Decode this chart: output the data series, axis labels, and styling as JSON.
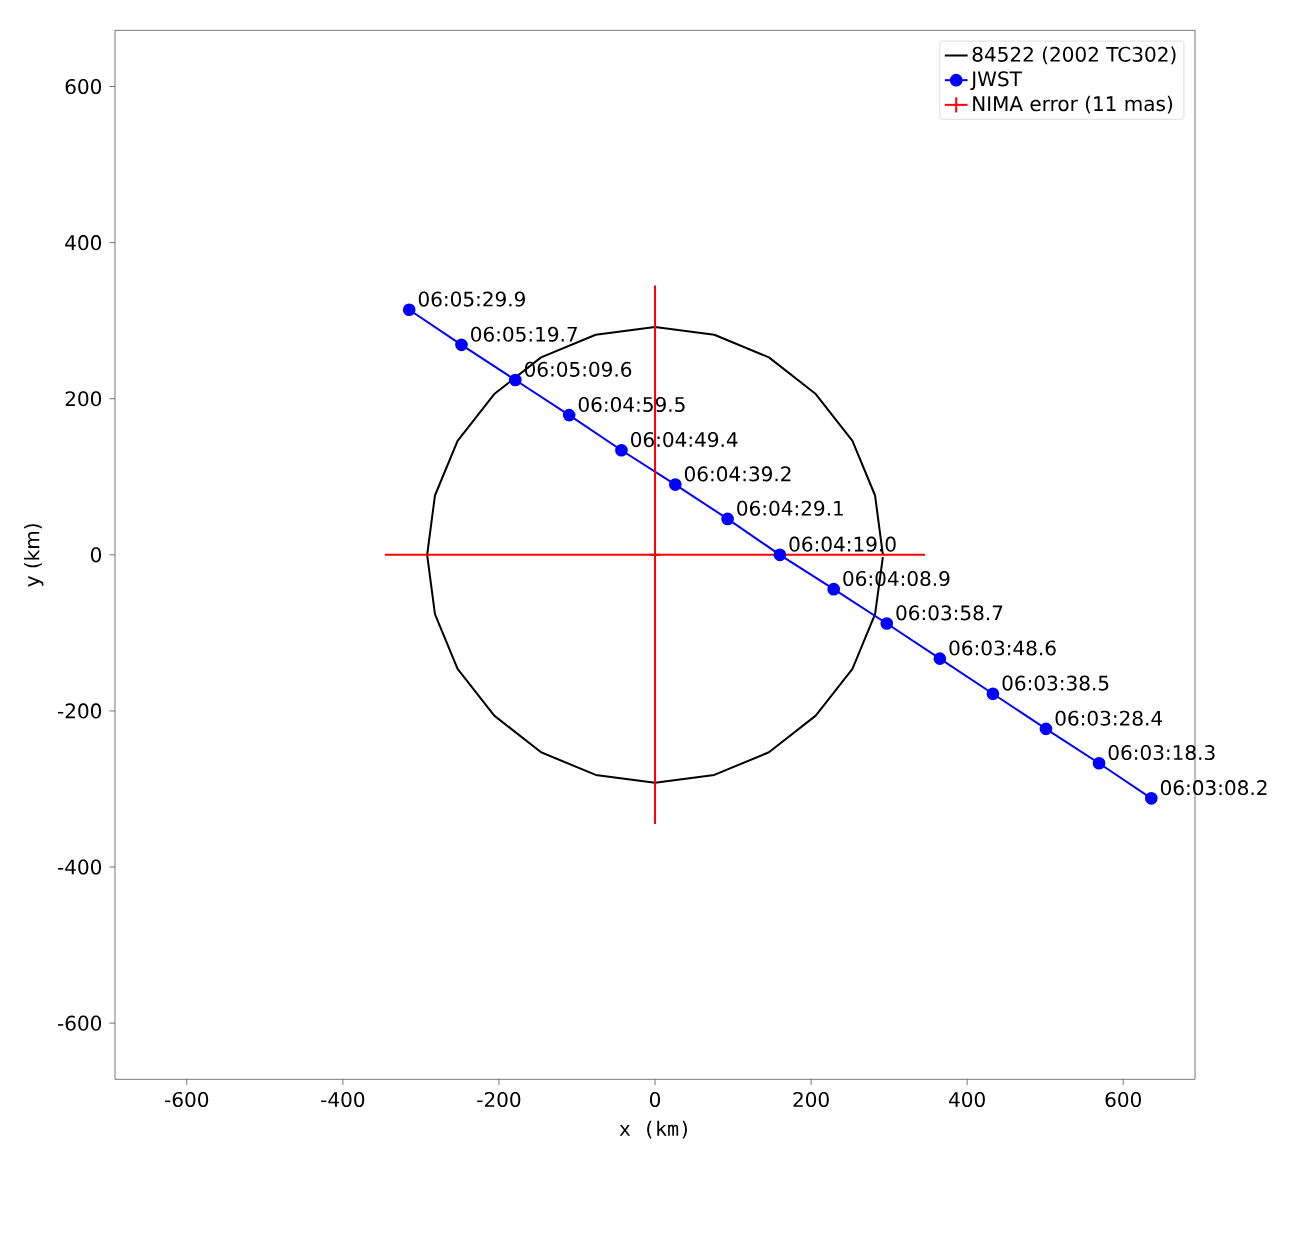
{
  "chart_data": {
    "type": "line",
    "xlabel": "x (km)",
    "ylabel": "y (km)",
    "xlim": [
      -692,
      692
    ],
    "ylim": [
      -672,
      672
    ],
    "xticks": [
      -600,
      -400,
      -200,
      0,
      200,
      400,
      600
    ],
    "yticks": [
      -600,
      -400,
      -200,
      0,
      200,
      400,
      600
    ],
    "legend": "top right",
    "grid": false,
    "series": [
      {
        "name": "84522 (2002 TC302)",
        "color": "#000000",
        "marker": "none",
        "x": [
          292,
          282,
          253,
          206,
          146,
          76,
          0,
          -76,
          -146,
          -206,
          -253,
          -282,
          -292,
          -282,
          -253,
          -206,
          -146,
          -76,
          0,
          76,
          146,
          206,
          253,
          282,
          292
        ],
        "values": [
          0,
          76,
          146,
          206,
          253,
          282,
          292,
          282,
          253,
          206,
          146,
          76,
          0,
          -76,
          -146,
          -206,
          -253,
          -282,
          -292,
          -282,
          -253,
          -206,
          -146,
          -76,
          -3
        ]
      },
      {
        "name": "JWST",
        "color": "#0000ff",
        "marker": "circle",
        "x": [
          -315,
          -248,
          -179,
          -110,
          -43,
          26,
          93,
          160,
          229,
          297,
          365,
          433,
          501,
          569,
          636
        ],
        "values": [
          314,
          269,
          224,
          179,
          134,
          90,
          46,
          0,
          -44,
          -88,
          -133,
          -178,
          -223,
          -267,
          -312
        ],
        "value_labels": [
          "06:05:29.9",
          "06:05:19.7",
          "06:05:09.6",
          "06:04:59.5",
          "06:04:49.4",
          "06:04:39.2",
          "06:04:29.1",
          "06:04:19.0",
          "06:04:08.9",
          "06:03:58.7",
          "06:03:48.6",
          "06:03:38.5",
          "06:03:28.4",
          "06:03:18.3",
          "06:03:08.2"
        ]
      },
      {
        "name": "NIMA error (11 mas)",
        "type": "scatter",
        "color": "#ff0000",
        "marker": "cross",
        "x": [
          0
        ],
        "values": [
          0
        ],
        "errors": [
          345
        ],
        "xerrors": [
          346
        ]
      }
    ]
  }
}
